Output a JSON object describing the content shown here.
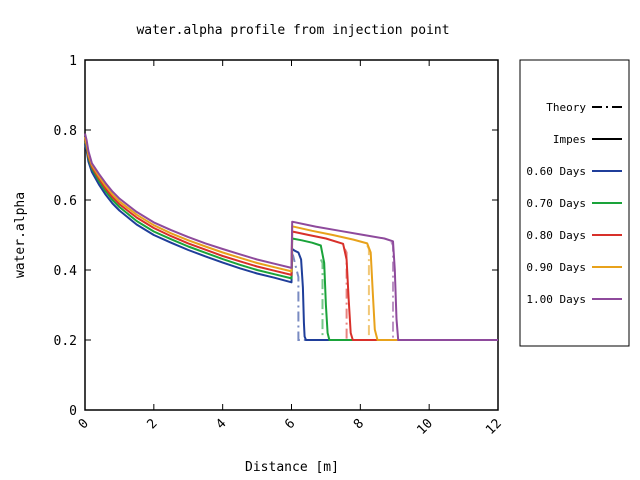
{
  "chart_data": {
    "type": "line",
    "title": "water.alpha profile from injection point",
    "xlabel": "Distance [m]",
    "ylabel": "water.alpha",
    "xlim": [
      0,
      12
    ],
    "ylim": [
      0,
      1
    ],
    "x_ticks": [
      0,
      2,
      4,
      6,
      8,
      10,
      12
    ],
    "y_ticks": [
      0,
      0.2,
      0.4,
      0.6,
      0.8,
      1
    ],
    "x_tick_labels": [
      "0",
      "2",
      "4",
      "6",
      "8",
      "10",
      "12"
    ],
    "y_tick_labels": [
      "0",
      "0.2",
      "0.4",
      "0.6",
      "0.8",
      "1"
    ],
    "grid": false,
    "legend_position": "right-outside",
    "legend_style_entries": [
      {
        "label": "Theory",
        "style": "dash-dot",
        "color": "#000000"
      },
      {
        "label": "Impes",
        "style": "solid",
        "color": "#000000"
      }
    ],
    "series": [
      {
        "name": "0.60 Days",
        "color": "#1f3e9a",
        "impes": {
          "x": [
            0,
            0.05,
            0.1,
            0.2,
            0.4,
            0.6,
            0.8,
            1.0,
            1.5,
            2.0,
            2.5,
            3.0,
            3.5,
            4.0,
            4.5,
            5.0,
            5.5,
            6.0,
            6.02,
            6.1,
            6.2,
            6.28,
            6.33,
            6.36,
            6.38,
            6.42,
            6.6,
            7,
            8,
            9,
            10,
            11,
            12
          ],
          "y": [
            0.76,
            0.74,
            0.71,
            0.68,
            0.645,
            0.615,
            0.59,
            0.57,
            0.53,
            0.5,
            0.478,
            0.457,
            0.439,
            0.421,
            0.405,
            0.39,
            0.378,
            0.365,
            0.46,
            0.455,
            0.45,
            0.43,
            0.35,
            0.25,
            0.21,
            0.2,
            0.2,
            0.2,
            0.2,
            0.2,
            0.2,
            0.2,
            0.2
          ]
        },
        "theory": {
          "x": [
            6.0,
            6.05,
            6.1,
            6.2,
            6.2,
            6.4,
            12
          ],
          "y": [
            0.45,
            0.44,
            0.42,
            0.38,
            0.2,
            0.2,
            0.2
          ]
        }
      },
      {
        "name": "0.70 Days",
        "color": "#1aa33a",
        "impes": {
          "x": [
            0,
            0.05,
            0.1,
            0.2,
            0.4,
            0.6,
            0.8,
            1.0,
            1.5,
            2.0,
            2.5,
            3.0,
            3.5,
            4.0,
            4.5,
            5.0,
            5.5,
            6.0,
            6.02,
            6.3,
            6.6,
            6.85,
            6.95,
            7.0,
            7.05,
            7.1,
            7.3,
            8,
            9,
            10,
            11,
            12
          ],
          "y": [
            0.77,
            0.75,
            0.72,
            0.69,
            0.655,
            0.625,
            0.6,
            0.58,
            0.54,
            0.51,
            0.488,
            0.467,
            0.449,
            0.431,
            0.415,
            0.4,
            0.388,
            0.376,
            0.49,
            0.485,
            0.478,
            0.47,
            0.42,
            0.3,
            0.22,
            0.2,
            0.2,
            0.2,
            0.2,
            0.2,
            0.2,
            0.2
          ]
        },
        "theory": {
          "x": [
            6.85,
            6.9,
            6.9,
            7.1,
            12
          ],
          "y": [
            0.43,
            0.42,
            0.2,
            0.2,
            0.2
          ]
        }
      },
      {
        "name": "0.80 Days",
        "color": "#d8302a",
        "impes": {
          "x": [
            0,
            0.05,
            0.1,
            0.2,
            0.4,
            0.6,
            0.8,
            1.0,
            1.5,
            2.0,
            2.5,
            3.0,
            3.5,
            4.0,
            4.5,
            5.0,
            5.5,
            6.0,
            6.02,
            6.5,
            7.0,
            7.5,
            7.6,
            7.66,
            7.72,
            7.78,
            8.0,
            9,
            10,
            11,
            12
          ],
          "y": [
            0.775,
            0.755,
            0.725,
            0.695,
            0.662,
            0.632,
            0.608,
            0.588,
            0.55,
            0.52,
            0.497,
            0.476,
            0.458,
            0.44,
            0.425,
            0.41,
            0.398,
            0.386,
            0.51,
            0.5,
            0.49,
            0.475,
            0.43,
            0.32,
            0.22,
            0.2,
            0.2,
            0.2,
            0.2,
            0.2,
            0.2
          ]
        },
        "theory": {
          "x": [
            7.55,
            7.6,
            7.6,
            7.8,
            12
          ],
          "y": [
            0.46,
            0.45,
            0.2,
            0.2,
            0.2
          ]
        }
      },
      {
        "name": "0.90 Days",
        "color": "#e8a21b",
        "impes": {
          "x": [
            0,
            0.05,
            0.1,
            0.2,
            0.4,
            0.6,
            0.8,
            1.0,
            1.5,
            2.0,
            2.5,
            3.0,
            3.5,
            4.0,
            4.5,
            5.0,
            5.5,
            6.0,
            6.02,
            6.6,
            7.2,
            7.8,
            8.2,
            8.3,
            8.36,
            8.42,
            8.5,
            8.7,
            9,
            10,
            11,
            12
          ],
          "y": [
            0.78,
            0.76,
            0.73,
            0.7,
            0.668,
            0.64,
            0.616,
            0.596,
            0.558,
            0.528,
            0.505,
            0.485,
            0.467,
            0.45,
            0.435,
            0.42,
            0.408,
            0.396,
            0.525,
            0.512,
            0.5,
            0.487,
            0.476,
            0.45,
            0.34,
            0.23,
            0.2,
            0.2,
            0.2,
            0.2,
            0.2,
            0.2
          ]
        },
        "theory": {
          "x": [
            8.2,
            8.25,
            8.25,
            8.45,
            12
          ],
          "y": [
            0.47,
            0.46,
            0.2,
            0.2,
            0.2
          ]
        }
      },
      {
        "name": "1.00 Days",
        "color": "#8e4a9c",
        "impes": {
          "x": [
            0,
            0.05,
            0.1,
            0.2,
            0.4,
            0.6,
            0.8,
            1.0,
            1.5,
            2.0,
            2.5,
            3.0,
            3.5,
            4.0,
            4.5,
            5.0,
            5.5,
            6.0,
            6.02,
            6.7,
            7.4,
            8.1,
            8.7,
            8.95,
            9.0,
            9.05,
            9.1,
            9.3,
            10,
            11,
            12
          ],
          "y": [
            0.79,
            0.77,
            0.74,
            0.705,
            0.675,
            0.648,
            0.624,
            0.604,
            0.566,
            0.536,
            0.514,
            0.494,
            0.476,
            0.46,
            0.445,
            0.43,
            0.418,
            0.406,
            0.538,
            0.524,
            0.512,
            0.5,
            0.49,
            0.482,
            0.4,
            0.26,
            0.2,
            0.2,
            0.2,
            0.2,
            0.2
          ]
        },
        "theory": {
          "x": [
            8.9,
            8.95,
            8.95,
            9.1,
            12
          ],
          "y": [
            0.48,
            0.47,
            0.2,
            0.2,
            0.2
          ]
        }
      }
    ]
  }
}
